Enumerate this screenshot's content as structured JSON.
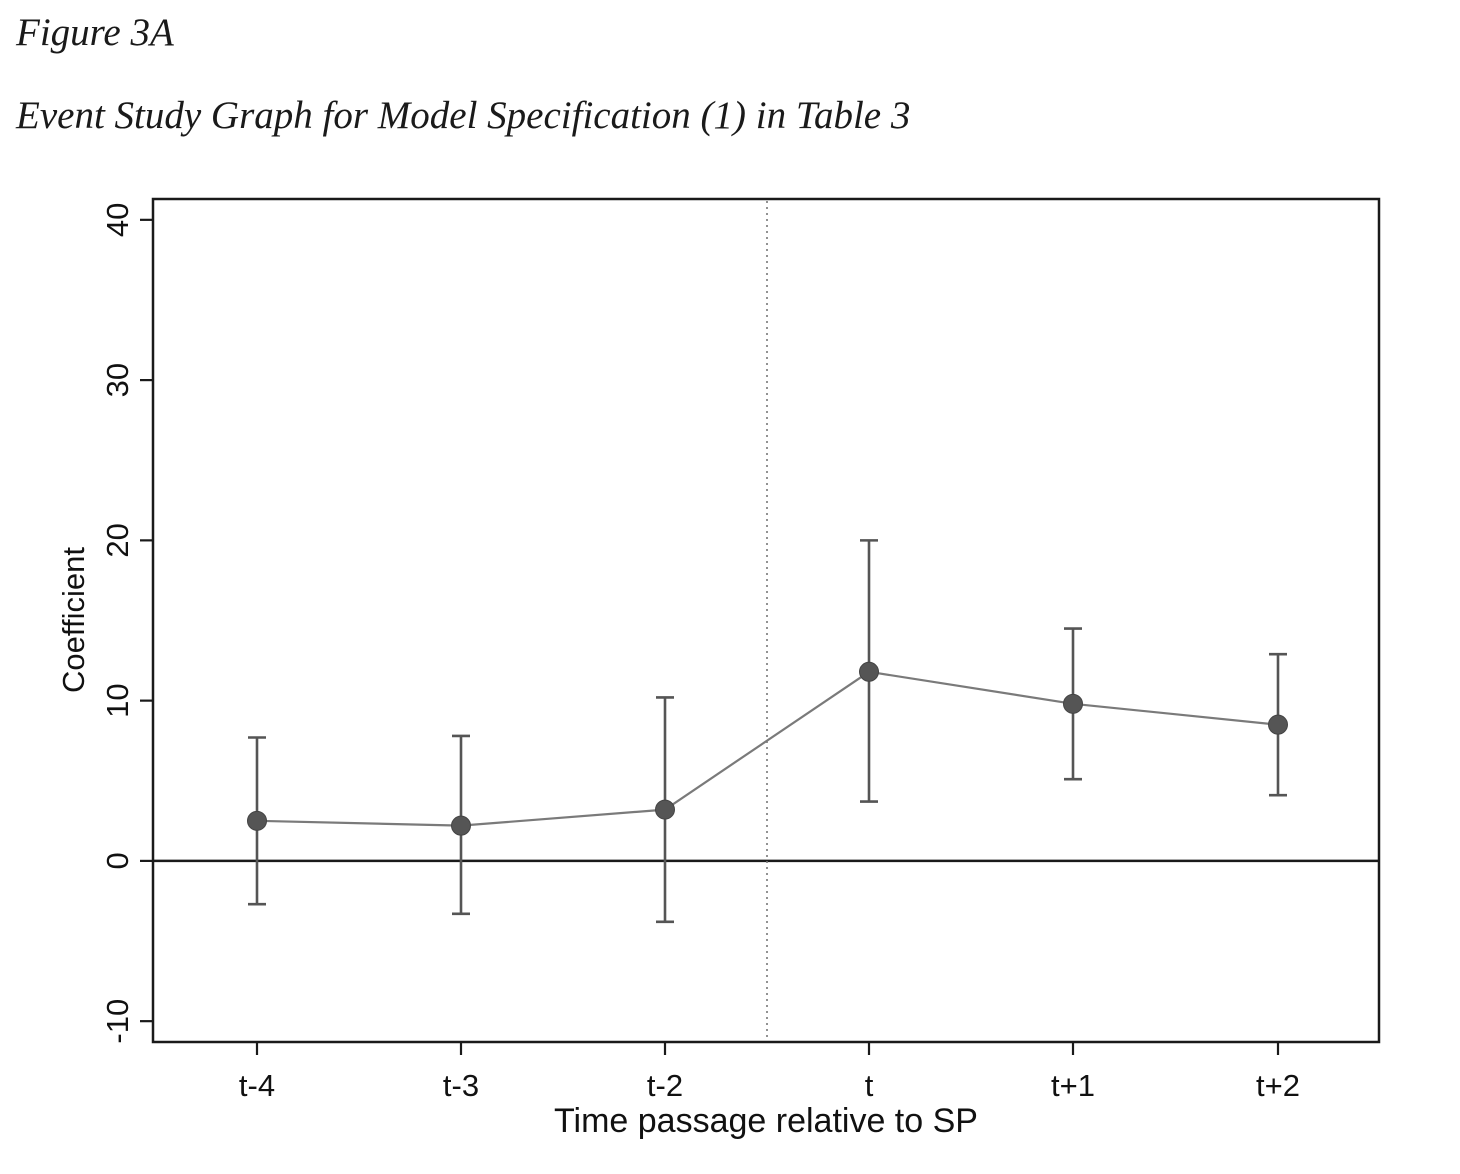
{
  "figure": {
    "label": "Figure 3A",
    "title": "Event Study Graph for Model Specification (1) in Table 3"
  },
  "chart_data": {
    "type": "scatter",
    "subtype": "event-study coefficient plot with confidence-interval error bars, points connected by line",
    "title": "",
    "xlabel": "Time passage relative to SP",
    "ylabel": "Coefficient",
    "categories": [
      "t-4",
      "t-3",
      "t-2",
      "t",
      "t+1",
      "t+2"
    ],
    "series": [
      {
        "values": [
          2.5,
          2.2,
          3.2,
          11.8,
          9.8,
          8.5
        ],
        "ci_low": [
          -2.7,
          -3.3,
          -3.8,
          3.7,
          5.1,
          4.1
        ],
        "ci_high": [
          7.7,
          7.8,
          10.2,
          20.0,
          14.5,
          12.9
        ]
      }
    ],
    "y_ticks": [
      -10,
      0,
      10,
      20,
      30,
      40
    ],
    "y_tick_labels": [
      "-10",
      "0",
      "10",
      "20",
      "30",
      "40"
    ],
    "ylim": [
      -11.3,
      41.3
    ],
    "reference_lines": {
      "horizontal_at_y": 0,
      "vertical_dotted_between": [
        "t-2",
        "t"
      ]
    },
    "grid": false,
    "legend": "none",
    "colors": {
      "marker": "#555555",
      "line": "#7a7a7a",
      "error_bar": "#555555",
      "axis": "#1a1a1a"
    }
  }
}
